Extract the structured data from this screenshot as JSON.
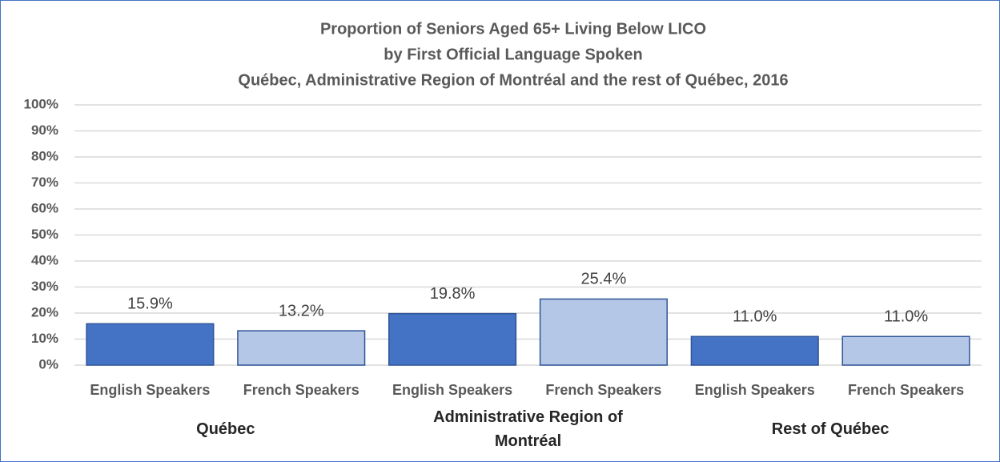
{
  "chart_data": {
    "type": "bar",
    "title": [
      "Proportion of Seniors Aged 65+ Living Below LICO",
      "by First Official Language Spoken",
      "Québec, Administrative Region of Montréal and the rest of Québec, 2016"
    ],
    "categories": [
      "English Speakers",
      "French Speakers",
      "English Speakers",
      "French Speakers",
      "English Speakers",
      "French Speakers"
    ],
    "groups": [
      "Québec",
      "Administrative Region of Montréal",
      "Rest of Québec"
    ],
    "values": [
      15.9,
      13.2,
      19.8,
      25.4,
      11.0,
      11.0
    ],
    "value_labels": [
      "15.9%",
      "13.2%",
      "19.8%",
      "25.4%",
      "11.0%",
      "11.0%"
    ],
    "colors": [
      "#4472c4",
      "#b4c7e7",
      "#4472c4",
      "#b4c7e7",
      "#4472c4",
      "#b4c7e7"
    ],
    "ylim": [
      0,
      100
    ],
    "yticks": [
      {
        "value": 0,
        "label": "0%"
      },
      {
        "value": 10,
        "label": "10%"
      },
      {
        "value": 20,
        "label": "20%"
      },
      {
        "value": 30,
        "label": "30%"
      },
      {
        "value": 40,
        "label": "40%"
      },
      {
        "value": 50,
        "label": "50%"
      },
      {
        "value": 60,
        "label": "60%"
      },
      {
        "value": 70,
        "label": "70%"
      },
      {
        "value": 80,
        "label": "80%"
      },
      {
        "value": 90,
        "label": "90%"
      },
      {
        "value": 100,
        "label": "100%"
      }
    ],
    "grid": true
  }
}
